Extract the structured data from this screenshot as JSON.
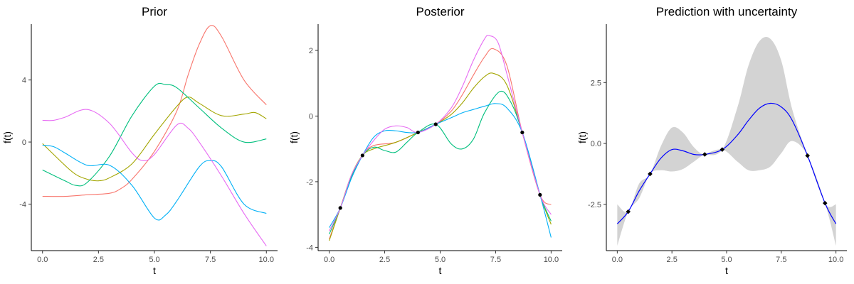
{
  "colors": {
    "series": [
      "#F8766D",
      "#A3A500",
      "#00BF7D",
      "#00B0F6",
      "#E76BF3"
    ],
    "axis": "#000000",
    "tick_text": "#4d4d4d",
    "band": "#d3d3d3",
    "mean_line": "#0000ff",
    "points": "#000000"
  },
  "chart_data": [
    {
      "type": "line",
      "title": "Prior",
      "xlabel": "t",
      "ylabel": "f(t)",
      "xlim": [
        -0.5,
        10.5
      ],
      "ylim": [
        -7,
        7.6
      ],
      "xticks": [
        0,
        2.5,
        5,
        7.5,
        10
      ],
      "xtick_labels": [
        "0.0",
        "2.5",
        "5.0",
        "7.5",
        "10.0"
      ],
      "yticks": [
        -4,
        0,
        4
      ],
      "ytick_labels": [
        "-4",
        "0",
        "4"
      ],
      "series": [
        {
          "x": [
            0,
            1,
            2,
            3,
            3.5,
            4,
            5,
            6,
            6.5,
            7,
            7.5,
            8,
            9,
            10
          ],
          "y": [
            -3.5,
            -3.5,
            -3.4,
            -3.3,
            -3.0,
            -2.4,
            -0.6,
            2.0,
            4.3,
            6.3,
            7.5,
            6.8,
            4.0,
            2.4
          ]
        },
        {
          "x": [
            0,
            1,
            1.5,
            2,
            2.5,
            3,
            4,
            5,
            6,
            6.5,
            7,
            8,
            9,
            9.5,
            10
          ],
          "y": [
            -0.1,
            -1.5,
            -2.1,
            -2.4,
            -2.5,
            -2.3,
            -1.4,
            0.5,
            2.3,
            2.9,
            2.5,
            1.7,
            1.8,
            1.9,
            1.5
          ]
        },
        {
          "x": [
            0,
            1,
            1.5,
            2,
            3,
            4,
            5,
            5.5,
            6,
            7,
            8,
            9,
            10
          ],
          "y": [
            -1.8,
            -2.5,
            -2.8,
            -2.6,
            -0.9,
            1.7,
            3.6,
            3.7,
            3.5,
            2.2,
            0.9,
            0.0,
            0.2
          ]
        },
        {
          "x": [
            0,
            0.5,
            1,
            2,
            3,
            4,
            5,
            5.5,
            6,
            7,
            7.5,
            8,
            9,
            10
          ],
          "y": [
            -0.2,
            -0.3,
            -0.7,
            -1.5,
            -1.5,
            -2.8,
            -4.9,
            -4.7,
            -3.8,
            -1.6,
            -1.2,
            -1.6,
            -4.0,
            -4.6
          ]
        },
        {
          "x": [
            0,
            0.5,
            1,
            2,
            3,
            4,
            4.5,
            5,
            6,
            6.5,
            7,
            8,
            9,
            10
          ],
          "y": [
            1.4,
            1.4,
            1.6,
            2.1,
            1.2,
            -0.7,
            -1.2,
            -0.8,
            1.1,
            0.9,
            0.0,
            -2.2,
            -4.6,
            -6.7
          ]
        }
      ]
    },
    {
      "type": "line",
      "title": "Posterior",
      "xlabel": "t",
      "ylabel": "f(t)",
      "xlim": [
        -0.5,
        10.5
      ],
      "ylim": [
        -4.1,
        2.8
      ],
      "xticks": [
        0,
        2.5,
        5,
        7.5,
        10
      ],
      "xtick_labels": [
        "0.0",
        "2.5",
        "5.0",
        "7.5",
        "10.0"
      ],
      "yticks": [
        -4,
        -2,
        0,
        2
      ],
      "ytick_labels": [
        "-4",
        "-2",
        "0",
        "2"
      ],
      "observations": {
        "x": [
          0.5,
          1.5,
          4.0,
          4.8,
          8.7,
          9.5
        ],
        "y": [
          -2.8,
          -1.2,
          -0.5,
          -0.25,
          -0.5,
          -2.4
        ]
      },
      "series": [
        {
          "x": [
            0,
            0.5,
            1,
            1.5,
            2,
            3,
            4,
            4.8,
            5.5,
            6,
            6.5,
            7,
            7.4,
            8,
            8.7,
            9.5,
            10
          ],
          "y": [
            -3.75,
            -2.8,
            -1.85,
            -1.2,
            -0.9,
            -0.8,
            -0.5,
            -0.25,
            0.15,
            0.65,
            1.25,
            1.8,
            2.05,
            1.55,
            -0.5,
            -2.4,
            -2.7
          ]
        },
        {
          "x": [
            0,
            0.5,
            1,
            1.5,
            2,
            3,
            4,
            4.8,
            5.5,
            6,
            6.5,
            7,
            7.4,
            8,
            8.7,
            9.5,
            10
          ],
          "y": [
            -3.8,
            -2.8,
            -1.8,
            -1.2,
            -1.0,
            -0.8,
            -0.5,
            -0.25,
            0.05,
            0.4,
            0.85,
            1.2,
            1.3,
            0.95,
            -0.5,
            -2.4,
            -3.3
          ]
        },
        {
          "x": [
            0,
            0.5,
            1,
            1.5,
            2,
            2.5,
            3,
            3.5,
            4,
            4.8,
            5.5,
            6,
            6.5,
            7,
            7.7,
            8.2,
            8.7,
            9.5,
            10
          ],
          "y": [
            -3.6,
            -2.8,
            -1.85,
            -1.2,
            -0.95,
            -1.05,
            -1.1,
            -0.8,
            -0.5,
            -0.25,
            -0.85,
            -1.0,
            -0.7,
            0.1,
            0.75,
            0.4,
            -0.5,
            -2.4,
            -3.2
          ]
        },
        {
          "x": [
            0,
            0.5,
            1,
            1.5,
            2,
            2.5,
            3,
            3.5,
            4,
            4.5,
            4.8,
            5.5,
            6,
            6.5,
            7,
            7.5,
            8,
            8.7,
            9.5,
            10
          ],
          "y": [
            -3.4,
            -2.8,
            -1.9,
            -1.2,
            -0.65,
            -0.45,
            -0.45,
            -0.5,
            -0.5,
            -0.35,
            -0.25,
            -0.05,
            0.1,
            0.2,
            0.3,
            0.38,
            0.25,
            -0.5,
            -2.4,
            -3.7
          ]
        },
        {
          "x": [
            0,
            0.5,
            1,
            1.5,
            2,
            2.5,
            3,
            3.5,
            4,
            4.8,
            5.5,
            6,
            6.5,
            7,
            7.2,
            7.6,
            8,
            8.7,
            9.5,
            10
          ],
          "y": [
            -3.5,
            -2.8,
            -1.8,
            -1.2,
            -0.75,
            -0.4,
            -0.3,
            -0.35,
            -0.5,
            -0.25,
            0.25,
            0.9,
            1.7,
            2.35,
            2.45,
            2.25,
            1.3,
            -0.5,
            -2.4,
            -3.0
          ]
        }
      ]
    },
    {
      "type": "area",
      "title": "Prediction with uncertainty",
      "xlabel": "t",
      "ylabel": "f(t)",
      "xlim": [
        -0.5,
        10.5
      ],
      "ylim": [
        -4.4,
        4.9
      ],
      "xticks": [
        0,
        2.5,
        5,
        7.5,
        10
      ],
      "xtick_labels": [
        "0.0",
        "2.5",
        "5.0",
        "7.5",
        "10.0"
      ],
      "yticks": [
        -2.5,
        0,
        2.5
      ],
      "ytick_labels": [
        "-2.5",
        "0.0",
        "2.5"
      ],
      "observations": {
        "x": [
          0.5,
          1.5,
          4.0,
          4.8,
          8.7,
          9.5
        ],
        "y": [
          -2.8,
          -1.25,
          -0.45,
          -0.25,
          -0.5,
          -2.45
        ]
      },
      "mean": {
        "x": [
          0,
          0.5,
          1,
          1.5,
          2,
          2.5,
          3,
          3.5,
          4,
          4.8,
          5.5,
          6,
          6.5,
          7,
          7.5,
          8,
          8.7,
          9.5,
          10
        ],
        "y": [
          -3.3,
          -2.8,
          -1.95,
          -1.25,
          -0.6,
          -0.25,
          -0.3,
          -0.45,
          -0.45,
          -0.25,
          0.35,
          0.95,
          1.45,
          1.65,
          1.5,
          0.95,
          -0.5,
          -2.45,
          -3.3
        ]
      },
      "band": {
        "x": [
          0,
          0.5,
          1,
          1.5,
          2,
          2.5,
          3,
          3.5,
          4,
          4.8,
          5.5,
          6,
          6.5,
          7,
          7.5,
          8,
          8.7,
          9.5,
          10
        ],
        "upper": [
          -2.5,
          -2.8,
          -1.65,
          -1.25,
          -0.1,
          0.65,
          0.45,
          -0.15,
          -0.45,
          -0.25,
          1.5,
          3.2,
          4.2,
          4.3,
          3.4,
          1.4,
          -0.5,
          -2.45,
          -2.5
        ],
        "lower": [
          -4.2,
          -2.8,
          -2.25,
          -1.25,
          -1.1,
          -1.15,
          -1.05,
          -0.75,
          -0.45,
          -0.25,
          -0.75,
          -1.1,
          -1.1,
          -0.95,
          -0.4,
          0.1,
          -0.5,
          -2.45,
          -4.2
        ]
      }
    }
  ]
}
